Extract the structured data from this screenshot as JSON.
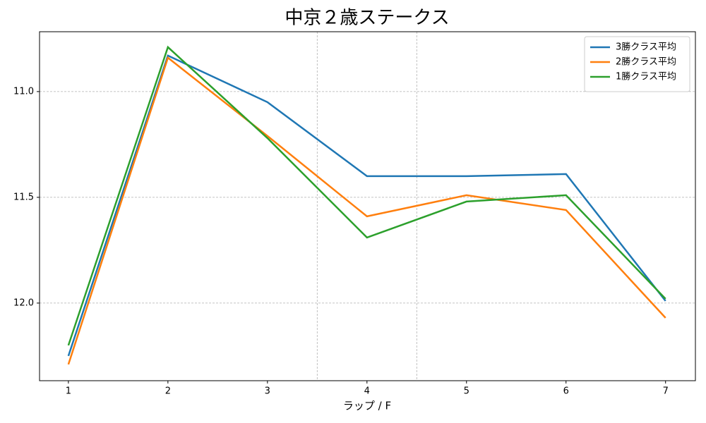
{
  "chart_data": {
    "type": "line",
    "title": "中京２歳ステークス",
    "xlabel": "ラップ / F",
    "x": [
      1,
      2,
      3,
      4,
      5,
      6,
      7
    ],
    "series": [
      {
        "name": "3勝クラス平均",
        "color": "#1f77b4",
        "values": [
          12.25,
          10.83,
          11.05,
          11.4,
          11.4,
          11.39,
          11.99
        ]
      },
      {
        "name": "2勝クラス平均",
        "color": "#ff7f0e",
        "values": [
          12.29,
          10.84,
          11.21,
          11.59,
          11.49,
          11.56,
          12.07
        ]
      },
      {
        "name": "1勝クラス平均",
        "color": "#2ca02c",
        "values": [
          12.2,
          10.79,
          11.22,
          11.69,
          11.52,
          11.49,
          11.98
        ]
      }
    ],
    "xlim": [
      0.71,
      7.3
    ],
    "xticks": [
      1,
      2,
      3,
      4,
      5,
      6,
      7
    ],
    "ylim": [
      12.367,
      10.717
    ],
    "yticks": [
      {
        "value": 11,
        "label": "11.0"
      },
      11.5,
      {
        "value": 12,
        "label": "12.0"
      }
    ],
    "vlines": [
      3.5,
      4.5
    ],
    "grid": true,
    "legend": "upper right"
  }
}
